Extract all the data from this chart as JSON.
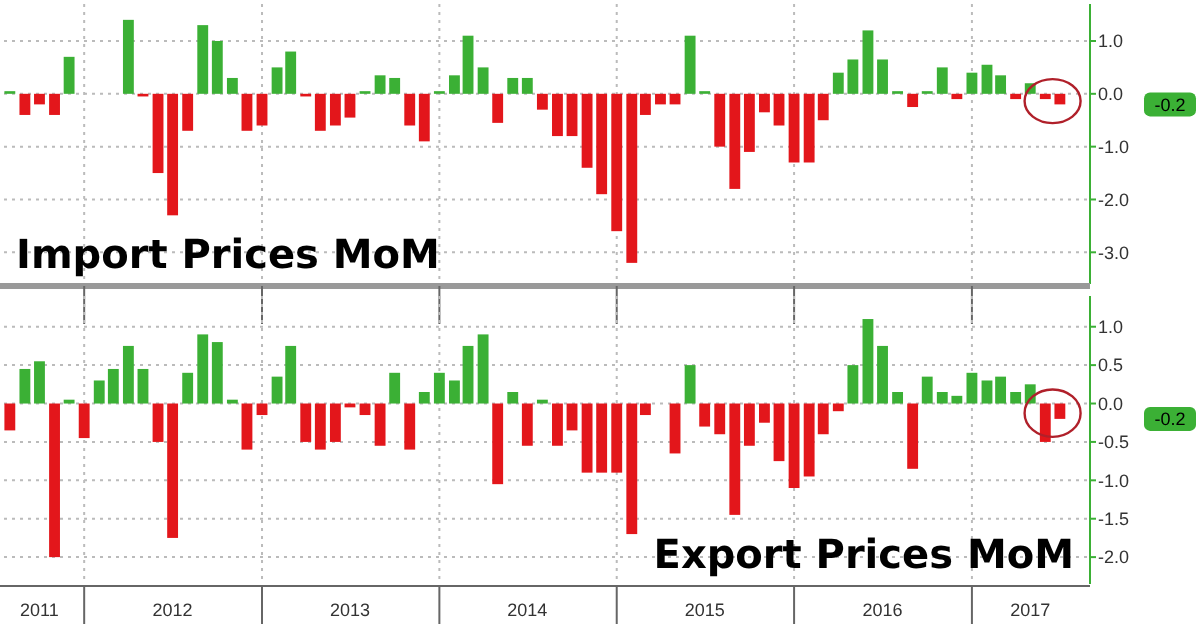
{
  "chart_data": [
    {
      "type": "bar",
      "title": "Import Prices MoM",
      "x": [
        "2011-08",
        "2011-09",
        "2011-10",
        "2011-11",
        "2011-12",
        "2012-01",
        "2012-02",
        "2012-03",
        "2012-04",
        "2012-05",
        "2012-06",
        "2012-07",
        "2012-08",
        "2012-09",
        "2012-10",
        "2012-11",
        "2012-12",
        "2013-01",
        "2013-02",
        "2013-03",
        "2013-04",
        "2013-05",
        "2013-06",
        "2013-07",
        "2013-08",
        "2013-09",
        "2013-10",
        "2013-11",
        "2013-12",
        "2014-01",
        "2014-02",
        "2014-03",
        "2014-04",
        "2014-05",
        "2014-06",
        "2014-07",
        "2014-08",
        "2014-09",
        "2014-10",
        "2014-11",
        "2014-12",
        "2015-01",
        "2015-02",
        "2015-03",
        "2015-04",
        "2015-05",
        "2015-06",
        "2015-07",
        "2015-08",
        "2015-09",
        "2015-10",
        "2015-11",
        "2015-12",
        "2016-01",
        "2016-02",
        "2016-03",
        "2016-04",
        "2016-05",
        "2016-06",
        "2016-07",
        "2016-08",
        "2016-09",
        "2016-10",
        "2016-11",
        "2016-12",
        "2017-01",
        "2017-02",
        "2017-03",
        "2017-04",
        "2017-05",
        "2017-06",
        "2017-07"
      ],
      "values": [
        0.05,
        -0.4,
        -0.2,
        -0.4,
        0.7,
        0,
        0,
        0,
        1.4,
        -0.05,
        -1.5,
        -2.3,
        -0.7,
        1.3,
        1.0,
        0.3,
        -0.7,
        -0.6,
        0.5,
        0.8,
        -0.05,
        -0.7,
        -0.6,
        -0.45,
        0.05,
        0.35,
        0.3,
        -0.6,
        -0.9,
        0.05,
        0.35,
        1.1,
        0.5,
        -0.55,
        0.3,
        0.3,
        -0.3,
        -0.8,
        -0.8,
        -1.4,
        -1.9,
        -2.6,
        -3.2,
        -0.4,
        -0.2,
        -0.2,
        1.1,
        0.05,
        -1.0,
        -1.8,
        -1.1,
        -0.35,
        -0.6,
        -1.3,
        -1.3,
        -0.5,
        0.4,
        0.65,
        1.2,
        0.65,
        0.05,
        -0.25,
        0.05,
        0.5,
        -0.1,
        0.4,
        0.55,
        0.35,
        -0.1,
        0.2,
        -0.1,
        -0.2
      ],
      "colors": [
        "#3bb035",
        "#e3161b",
        "#e3161b",
        "#e3161b",
        "#3bb035",
        "#3bb035",
        "#3bb035",
        "#3bb035",
        "#3bb035",
        "#e3161b",
        "#e3161b",
        "#e3161b",
        "#e3161b",
        "#3bb035",
        "#3bb035",
        "#3bb035",
        "#e3161b",
        "#e3161b",
        "#3bb035",
        "#3bb035",
        "#e3161b",
        "#e3161b",
        "#e3161b",
        "#e3161b",
        "#3bb035",
        "#3bb035",
        "#3bb035",
        "#e3161b",
        "#e3161b",
        "#3bb035",
        "#3bb035",
        "#3bb035",
        "#3bb035",
        "#e3161b",
        "#3bb035",
        "#3bb035",
        "#e3161b",
        "#e3161b",
        "#e3161b",
        "#e3161b",
        "#e3161b",
        "#e3161b",
        "#e3161b",
        "#e3161b",
        "#e3161b",
        "#e3161b",
        "#3bb035",
        "#3bb035",
        "#e3161b",
        "#e3161b",
        "#e3161b",
        "#e3161b",
        "#e3161b",
        "#e3161b",
        "#e3161b",
        "#e3161b",
        "#3bb035",
        "#3bb035",
        "#3bb035",
        "#3bb035",
        "#3bb035",
        "#e3161b",
        "#3bb035",
        "#3bb035",
        "#e3161b",
        "#3bb035",
        "#3bb035",
        "#3bb035",
        "#e3161b",
        "#3bb035",
        "#e3161b",
        "#e3161b"
      ],
      "xlim": [
        "2011-07-20",
        "2017-09-01"
      ],
      "xticks": [
        {
          "value": "2012-01-01",
          "label": null
        },
        {
          "value": "2013-01-01",
          "label": null
        },
        {
          "value": "2014-01-01",
          "label": null
        },
        {
          "value": "2015-01-01",
          "label": null
        },
        {
          "value": "2016-01-01",
          "label": null
        },
        {
          "value": "2017-01-01",
          "label": null
        }
      ],
      "ylim": [
        -3.6,
        1.7
      ],
      "yticks": [
        {
          "value": 1,
          "label": "1.0"
        },
        {
          "value": 0,
          "label": "0.0"
        },
        {
          "value": -1,
          "label": "-1.0"
        },
        {
          "value": -2,
          "label": "-2.0"
        },
        {
          "value": -3,
          "label": "-3.0"
        }
      ],
      "tick_labels": "y",
      "grid": true,
      "annotations": [
        "-0.2"
      ]
    },
    {
      "type": "bar",
      "title": "Export Prices MoM",
      "x": [
        "2011-08",
        "2011-09",
        "2011-10",
        "2011-11",
        "2011-12",
        "2012-01",
        "2012-02",
        "2012-03",
        "2012-04",
        "2012-05",
        "2012-06",
        "2012-07",
        "2012-08",
        "2012-09",
        "2012-10",
        "2012-11",
        "2012-12",
        "2013-01",
        "2013-02",
        "2013-03",
        "2013-04",
        "2013-05",
        "2013-06",
        "2013-07",
        "2013-08",
        "2013-09",
        "2013-10",
        "2013-11",
        "2013-12",
        "2014-01",
        "2014-02",
        "2014-03",
        "2014-04",
        "2014-05",
        "2014-06",
        "2014-07",
        "2014-08",
        "2014-09",
        "2014-10",
        "2014-11",
        "2014-12",
        "2015-01",
        "2015-02",
        "2015-03",
        "2015-04",
        "2015-05",
        "2015-06",
        "2015-07",
        "2015-08",
        "2015-09",
        "2015-10",
        "2015-11",
        "2015-12",
        "2016-01",
        "2016-02",
        "2016-03",
        "2016-04",
        "2016-05",
        "2016-06",
        "2016-07",
        "2016-08",
        "2016-09",
        "2016-10",
        "2016-11",
        "2016-12",
        "2017-01",
        "2017-02",
        "2017-03",
        "2017-04",
        "2017-05",
        "2017-06",
        "2017-07"
      ],
      "values": [
        -0.35,
        0.45,
        0.55,
        -2.0,
        0.05,
        -0.45,
        0.3,
        0.45,
        0.75,
        0.45,
        -0.5,
        -1.75,
        0.4,
        0.9,
        0.8,
        0.05,
        -0.6,
        -0.15,
        0.35,
        0.75,
        -0.5,
        -0.6,
        -0.5,
        -0.05,
        -0.15,
        -0.55,
        0.4,
        -0.6,
        0.15,
        0.4,
        0.3,
        0.75,
        0.9,
        -1.05,
        0.15,
        -0.55,
        0.05,
        -0.55,
        -0.35,
        -0.9,
        -0.9,
        -0.9,
        -1.7,
        -0.15,
        0,
        -0.65,
        0.5,
        -0.3,
        -0.4,
        -1.45,
        -0.55,
        -0.25,
        -0.75,
        -1.1,
        -0.95,
        -0.4,
        -0.1,
        0.5,
        1.1,
        0.75,
        0.15,
        -0.85,
        0.35,
        0.15,
        0.1,
        0.4,
        0.3,
        0.35,
        0.15,
        0.25,
        -0.5,
        -0.2
      ],
      "colors": [
        "#e3161b",
        "#3bb035",
        "#3bb035",
        "#e3161b",
        "#3bb035",
        "#e3161b",
        "#3bb035",
        "#3bb035",
        "#3bb035",
        "#3bb035",
        "#e3161b",
        "#e3161b",
        "#3bb035",
        "#3bb035",
        "#3bb035",
        "#3bb035",
        "#e3161b",
        "#e3161b",
        "#3bb035",
        "#3bb035",
        "#e3161b",
        "#e3161b",
        "#e3161b",
        "#e3161b",
        "#e3161b",
        "#e3161b",
        "#3bb035",
        "#e3161b",
        "#3bb035",
        "#3bb035",
        "#3bb035",
        "#3bb035",
        "#3bb035",
        "#e3161b",
        "#3bb035",
        "#e3161b",
        "#3bb035",
        "#e3161b",
        "#e3161b",
        "#e3161b",
        "#e3161b",
        "#e3161b",
        "#e3161b",
        "#e3161b",
        "#e3161b",
        "#e3161b",
        "#3bb035",
        "#e3161b",
        "#e3161b",
        "#e3161b",
        "#e3161b",
        "#e3161b",
        "#e3161b",
        "#e3161b",
        "#e3161b",
        "#e3161b",
        "#e3161b",
        "#3bb035",
        "#3bb035",
        "#3bb035",
        "#3bb035",
        "#e3161b",
        "#3bb035",
        "#3bb035",
        "#3bb035",
        "#3bb035",
        "#3bb035",
        "#3bb035",
        "#3bb035",
        "#3bb035",
        "#e3161b",
        "#e3161b"
      ],
      "xlim": [
        "2011-07-20",
        "2017-09-01"
      ],
      "xticks": [
        {
          "value": "2011-10-01",
          "label": "2011"
        },
        {
          "value": "2012-01-01",
          "label": null
        },
        {
          "value": "2012-07-01",
          "label": "2012"
        },
        {
          "value": "2013-01-01",
          "label": null
        },
        {
          "value": "2013-07-01",
          "label": "2013"
        },
        {
          "value": "2014-01-01",
          "label": null
        },
        {
          "value": "2014-07-01",
          "label": "2014"
        },
        {
          "value": "2015-01-01",
          "label": null
        },
        {
          "value": "2015-07-01",
          "label": "2015"
        },
        {
          "value": "2016-01-01",
          "label": null
        },
        {
          "value": "2016-07-01",
          "label": "2016"
        },
        {
          "value": "2017-01-01",
          "label": null
        },
        {
          "value": "2017-05-01",
          "label": "2017"
        }
      ],
      "ylim": [
        -2.35,
        1.4
      ],
      "yticks": [
        {
          "value": 1,
          "label": "1.0"
        },
        {
          "value": 0.5,
          "label": "0.5"
        },
        {
          "value": 0,
          "label": "0.0"
        },
        {
          "value": -0.5,
          "label": "-0.5"
        },
        {
          "value": -1,
          "label": "-1.0"
        },
        {
          "value": -1.5,
          "label": "-1.5"
        },
        {
          "value": -2,
          "label": "-2.0"
        }
      ],
      "grid": true,
      "annotations": [
        "-0.2"
      ]
    }
  ]
}
